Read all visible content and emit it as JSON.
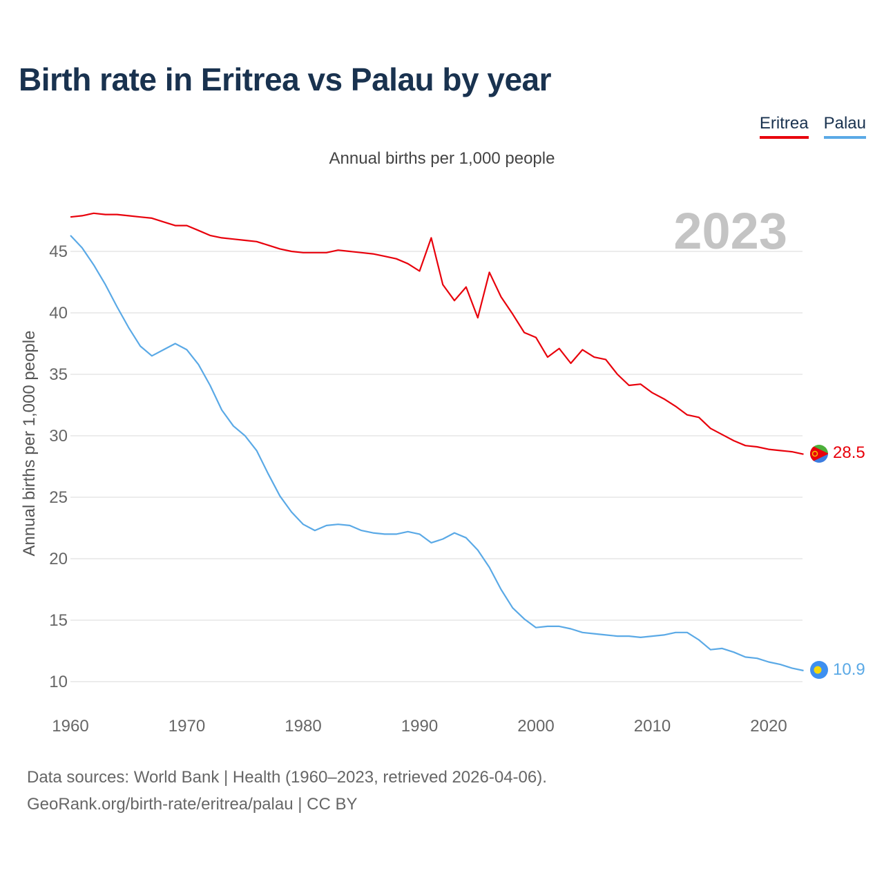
{
  "title": "Birth rate in Eritrea vs Palau by year",
  "subtitle": "Annual births per 1,000 people",
  "year_label": "2023",
  "legend": [
    {
      "label": "Eritrea",
      "color": "#e8000b"
    },
    {
      "label": "Palau",
      "color": "#5aa9e6"
    }
  ],
  "footer": {
    "line1": "Data sources: World Bank | Health (1960–2023, retrieved 2026-04-06).",
    "line2": "GeoRank.org/birth-rate/eritrea/palau | CC BY"
  },
  "chart_data": {
    "type": "line",
    "title": "Birth rate in Eritrea vs Palau by year",
    "xlabel": "",
    "ylabel": "Annual births per 1,000 people",
    "xlim": [
      1960,
      2023
    ],
    "ylim": [
      10,
      47
    ],
    "xticks": [
      1960,
      1970,
      1980,
      1990,
      2000,
      2010,
      2020
    ],
    "yticks": [
      10,
      15,
      20,
      25,
      30,
      35,
      40,
      45
    ],
    "grid": true,
    "x": [
      1960,
      1961,
      1962,
      1963,
      1964,
      1965,
      1966,
      1967,
      1968,
      1969,
      1970,
      1971,
      1972,
      1973,
      1974,
      1975,
      1976,
      1977,
      1978,
      1979,
      1980,
      1981,
      1982,
      1983,
      1984,
      1985,
      1986,
      1987,
      1988,
      1989,
      1990,
      1991,
      1992,
      1993,
      1994,
      1995,
      1996,
      1997,
      1998,
      1999,
      2000,
      2001,
      2002,
      2003,
      2004,
      2005,
      2006,
      2007,
      2008,
      2009,
      2010,
      2011,
      2012,
      2013,
      2014,
      2015,
      2016,
      2017,
      2018,
      2019,
      2020,
      2021,
      2022,
      2023
    ],
    "series": [
      {
        "name": "Eritrea",
        "color": "#e8000b",
        "end_label": "28.5",
        "values": [
          47.8,
          47.9,
          48.1,
          48.0,
          48.0,
          47.9,
          47.8,
          47.7,
          47.4,
          47.1,
          47.1,
          46.7,
          46.3,
          46.1,
          46.0,
          45.9,
          45.8,
          45.5,
          45.2,
          45.0,
          44.9,
          44.9,
          44.9,
          45.1,
          45.0,
          44.9,
          44.8,
          44.6,
          44.4,
          44.0,
          43.4,
          46.1,
          42.3,
          41.0,
          42.1,
          39.6,
          43.3,
          41.3,
          39.9,
          38.4,
          38.0,
          36.4,
          37.1,
          35.9,
          37.0,
          36.4,
          36.2,
          35.0,
          34.1,
          34.2,
          33.5,
          33.0,
          32.4,
          31.7,
          31.5,
          30.6,
          30.1,
          29.6,
          29.2,
          29.1,
          28.9,
          28.8,
          28.7,
          28.5
        ]
      },
      {
        "name": "Palau",
        "color": "#5aa9e6",
        "end_label": "10.9",
        "values": [
          46.3,
          45.3,
          43.9,
          42.3,
          40.5,
          38.8,
          37.3,
          36.5,
          37.0,
          37.5,
          37.0,
          35.8,
          34.1,
          32.1,
          30.8,
          30.0,
          28.8,
          26.9,
          25.1,
          23.8,
          22.8,
          22.3,
          22.7,
          22.8,
          22.7,
          22.3,
          22.1,
          22.0,
          22.0,
          22.2,
          22.0,
          21.3,
          21.6,
          22.1,
          21.7,
          20.7,
          19.3,
          17.5,
          16.0,
          15.1,
          14.4,
          14.5,
          14.5,
          14.3,
          14.0,
          13.9,
          13.8,
          13.7,
          13.7,
          13.6,
          13.7,
          13.8,
          14.0,
          14.0,
          13.4,
          12.6,
          12.7,
          12.4,
          12.0,
          11.9,
          11.6,
          11.4,
          11.1,
          10.9
        ]
      }
    ]
  }
}
